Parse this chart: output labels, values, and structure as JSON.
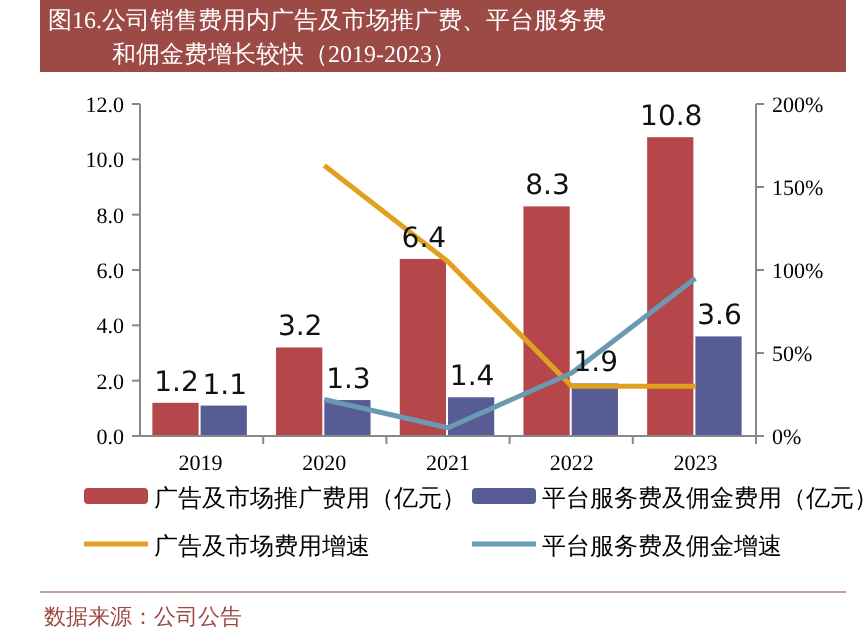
{
  "chart_data": {
    "type": "bar",
    "title": "图16.公司销售费用内广告及市场推广费、平台服务费和佣金费增长较快（2019-2023）",
    "annotations": [
      "数据来源：公司公告"
    ],
    "categories": [
      "2019",
      "2020",
      "2021",
      "2022",
      "2023"
    ],
    "series": [
      {
        "name": "广告及市场推广费用（亿元）",
        "color": "#b5474a",
        "values": [
          1.2,
          3.2,
          6.4,
          8.3,
          10.8
        ],
        "value_labels": [
          "1.2",
          "3.2",
          "6.4",
          "8.3",
          "10.8"
        ]
      },
      {
        "name": "平台服务费及佣金费用（亿元）",
        "color": "#585c94",
        "values": [
          1.1,
          1.3,
          1.4,
          1.9,
          3.6
        ],
        "value_labels": [
          "1.1",
          "1.3",
          "1.4",
          "1.9",
          "3.6"
        ]
      },
      {
        "name": "广告及市场费用增速",
        "type": "line",
        "axis": "y2",
        "color": "#e0a020",
        "values": [
          null,
          163,
          105,
          30,
          30
        ]
      },
      {
        "name": "平台服务费及佣金增速",
        "type": "line",
        "axis": "y2",
        "color": "#6a9ab2",
        "values": [
          null,
          22,
          5,
          38,
          95
        ]
      }
    ],
    "ylim": [
      0,
      12
    ],
    "yticks": [
      {
        "value": 0,
        "label": "0.0"
      },
      {
        "value": 2,
        "label": "2.0"
      },
      {
        "value": 4,
        "label": "4.0"
      },
      {
        "value": 6,
        "label": "6.0"
      },
      {
        "value": 8,
        "label": "8.0"
      },
      {
        "value": 10,
        "label": "10.0"
      },
      {
        "value": 12,
        "label": "12.0"
      }
    ],
    "y2lim": [
      0,
      200
    ],
    "y2ticks": [
      {
        "value": 0,
        "label": "0%"
      },
      {
        "value": 50,
        "label": "50%"
      },
      {
        "value": 100,
        "label": "100%"
      },
      {
        "value": 150,
        "label": "150%"
      },
      {
        "value": 200,
        "label": "200%"
      }
    ],
    "legend": "bottom",
    "grid": false
  }
}
